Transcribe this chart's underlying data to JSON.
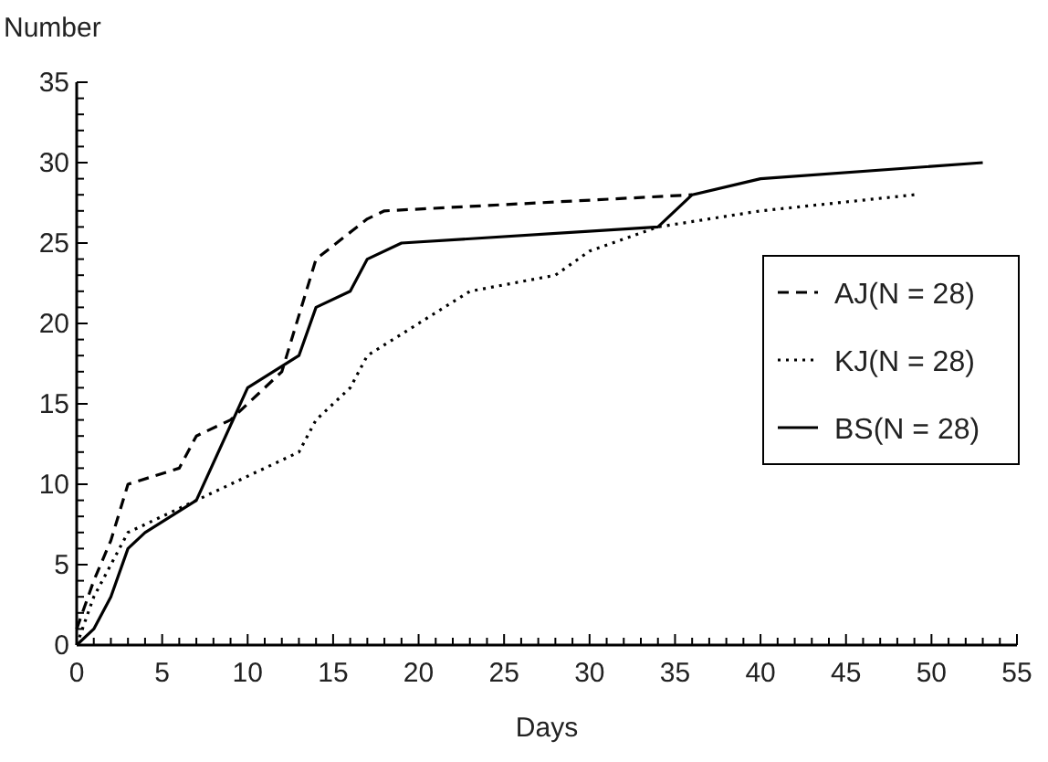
{
  "chart_data": {
    "type": "line",
    "xlabel": "Days",
    "ylabel": "Number",
    "xlim": [
      0,
      55
    ],
    "ylim": [
      0,
      35
    ],
    "xticks": [
      0,
      {
        "value": 1,
        "label": null
      },
      {
        "value": 2,
        "label": null
      },
      {
        "value": 3,
        "label": null
      },
      {
        "value": 4,
        "label": null
      },
      5,
      {
        "value": 6,
        "label": null
      },
      {
        "value": 7,
        "label": null
      },
      {
        "value": 8,
        "label": null
      },
      {
        "value": 9,
        "label": null
      },
      10,
      {
        "value": 11,
        "label": null
      },
      {
        "value": 12,
        "label": null
      },
      {
        "value": 13,
        "label": null
      },
      {
        "value": 14,
        "label": null
      },
      15,
      {
        "value": 16,
        "label": null
      },
      {
        "value": 17,
        "label": null
      },
      {
        "value": 18,
        "label": null
      },
      {
        "value": 19,
        "label": null
      },
      20,
      {
        "value": 21,
        "label": null
      },
      {
        "value": 22,
        "label": null
      },
      {
        "value": 23,
        "label": null
      },
      {
        "value": 24,
        "label": null
      },
      25,
      {
        "value": 26,
        "label": null
      },
      {
        "value": 27,
        "label": null
      },
      {
        "value": 28,
        "label": null
      },
      {
        "value": 29,
        "label": null
      },
      30,
      {
        "value": 31,
        "label": null
      },
      {
        "value": 32,
        "label": null
      },
      {
        "value": 33,
        "label": null
      },
      {
        "value": 34,
        "label": null
      },
      35,
      {
        "value": 36,
        "label": null
      },
      {
        "value": 37,
        "label": null
      },
      {
        "value": 38,
        "label": null
      },
      {
        "value": 39,
        "label": null
      },
      40,
      {
        "value": 41,
        "label": null
      },
      {
        "value": 42,
        "label": null
      },
      {
        "value": 43,
        "label": null
      },
      {
        "value": 44,
        "label": null
      },
      45,
      {
        "value": 46,
        "label": null
      },
      {
        "value": 47,
        "label": null
      },
      {
        "value": 48,
        "label": null
      },
      {
        "value": 49,
        "label": null
      },
      50,
      {
        "value": 51,
        "label": null
      },
      {
        "value": 52,
        "label": null
      },
      {
        "value": 53,
        "label": null
      },
      {
        "value": 54,
        "label": null
      },
      55
    ],
    "yticks": [
      0,
      {
        "value": 1,
        "label": null
      },
      {
        "value": 2,
        "label": null
      },
      {
        "value": 3,
        "label": null
      },
      {
        "value": 4,
        "label": null
      },
      5,
      {
        "value": 6,
        "label": null
      },
      {
        "value": 7,
        "label": null
      },
      {
        "value": 8,
        "label": null
      },
      {
        "value": 9,
        "label": null
      },
      10,
      {
        "value": 11,
        "label": null
      },
      {
        "value": 12,
        "label": null
      },
      {
        "value": 13,
        "label": null
      },
      {
        "value": 14,
        "label": null
      },
      15,
      {
        "value": 16,
        "label": null
      },
      {
        "value": 17,
        "label": null
      },
      {
        "value": 18,
        "label": null
      },
      {
        "value": 19,
        "label": null
      },
      20,
      {
        "value": 21,
        "label": null
      },
      {
        "value": 22,
        "label": null
      },
      {
        "value": 23,
        "label": null
      },
      {
        "value": 24,
        "label": null
      },
      25,
      {
        "value": 26,
        "label": null
      },
      {
        "value": 27,
        "label": null
      },
      {
        "value": 28,
        "label": null
      },
      {
        "value": 29,
        "label": null
      },
      30,
      {
        "value": 31,
        "label": null
      },
      {
        "value": 32,
        "label": null
      },
      {
        "value": 33,
        "label": null
      },
      {
        "value": 34,
        "label": null
      },
      35
    ],
    "grid": false,
    "legend": "right",
    "marker": "none",
    "series": [
      {
        "name": "AJ(N = 28)",
        "color": "#000000",
        "line_style": "dashed",
        "x": [
          0,
          1,
          2,
          3,
          6,
          7,
          9,
          10,
          12,
          14,
          17,
          18,
          36
        ],
        "values": [
          1,
          4,
          6.5,
          10,
          11,
          13,
          14,
          15,
          17,
          24,
          26.5,
          27,
          28
        ]
      },
      {
        "name": "KJ(N = 28)",
        "color": "#000000",
        "line_style": "dotted",
        "x": [
          0,
          1,
          3,
          4,
          7,
          10,
          13,
          14,
          16,
          17,
          20,
          23,
          28,
          30,
          34,
          40,
          49
        ],
        "values": [
          0,
          3,
          7,
          7.5,
          9,
          10.5,
          12,
          14,
          16,
          18,
          20,
          22,
          23,
          24.5,
          26,
          27,
          28
        ]
      },
      {
        "name": "BS(N = 28)",
        "color": "#000000",
        "line_style": "solid",
        "x": [
          0,
          1,
          2,
          3,
          4,
          7,
          10,
          13,
          14,
          16,
          17,
          19,
          34,
          36,
          40,
          53
        ],
        "values": [
          0,
          1,
          3,
          6,
          7,
          9,
          16,
          18,
          21,
          22,
          24,
          25,
          26,
          28,
          29,
          30
        ]
      }
    ]
  }
}
